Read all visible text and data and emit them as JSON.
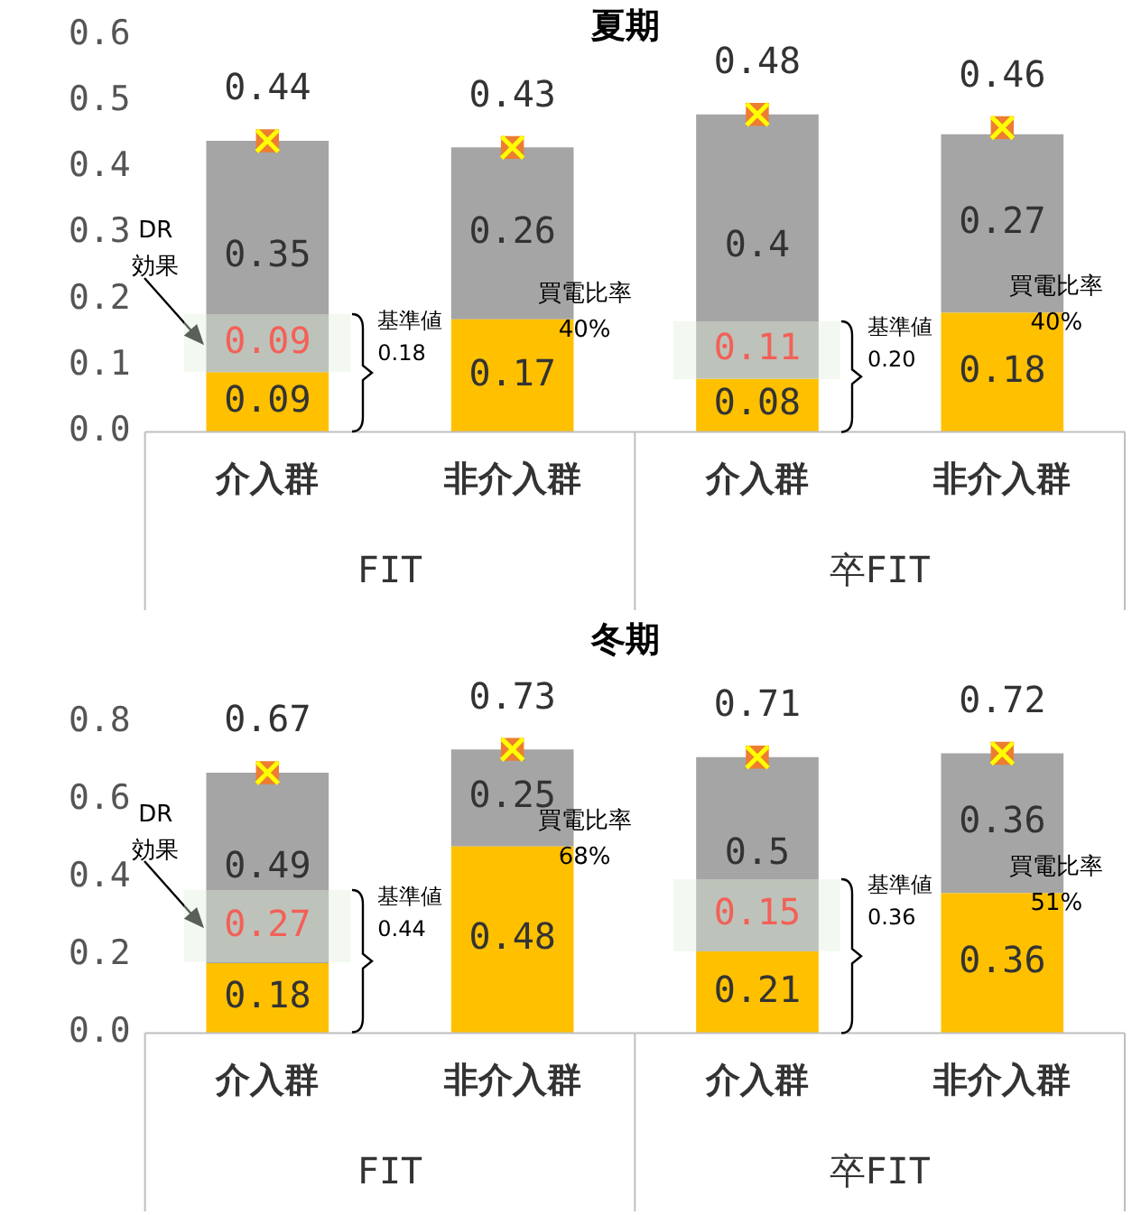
{
  "chart_data": [
    {
      "type": "bar",
      "title": "夏期",
      "stacked": true,
      "categories": [
        "介入群",
        "非介入群",
        "介入群",
        "非介入群"
      ],
      "series": [
        {
          "color": "#ffc000",
          "values": [
            0.09,
            0.17,
            0.08,
            0.18
          ],
          "value_labels": [
            "0.09",
            "0.17",
            "0.08",
            "0.18"
          ]
        },
        {
          "color": "#a5a5a5",
          "values": [
            0.35,
            0.26,
            0.4,
            0.27
          ],
          "value_labels": [
            "0.35",
            "0.26",
            "0.4",
            "0.27"
          ]
        },
        {
          "type": "scatter",
          "color": "#ed7d31",
          "values": [
            0.44,
            0.43,
            0.48,
            0.46
          ],
          "value_labels": [
            "0.44",
            "0.43",
            "0.48",
            "0.46"
          ]
        }
      ],
      "marker": "square",
      "legend": false,
      "grid": false,
      "ylim": [
        0,
        0.6
      ],
      "yticks": [
        {
          "value": 0,
          "label": "0.0"
        },
        0.1,
        0.2,
        0.3,
        0.4,
        0.5,
        0.6
      ],
      "annotations": [
        "DR\n効果",
        "0.09",
        "基準値\n0.18",
        "買電比率\n40%",
        "0.11",
        "基準値\n0.20",
        "買電比率\n40%",
        "FIT",
        "卒FIT"
      ]
    },
    {
      "type": "bar",
      "title": "冬期",
      "stacked": true,
      "categories": [
        "介入群",
        "非介入群",
        "介入群",
        "非介入群"
      ],
      "series": [
        {
          "color": "#ffc000",
          "values": [
            0.18,
            0.48,
            0.21,
            0.36
          ],
          "value_labels": [
            "0.18",
            "0.48",
            "0.21",
            "0.36"
          ]
        },
        {
          "color": "#a5a5a5",
          "values": [
            0.49,
            0.25,
            0.5,
            0.36
          ],
          "value_labels": [
            "0.49",
            "0.25",
            "0.5",
            "0.36"
          ]
        },
        {
          "type": "scatter",
          "color": "#ed7d31",
          "values": [
            0.67,
            0.73,
            0.71,
            0.72
          ],
          "value_labels": [
            "0.67",
            "0.73",
            "0.71",
            "0.72"
          ]
        }
      ],
      "marker": "square",
      "legend": false,
      "grid": false,
      "ylim": [
        0,
        0.8
      ],
      "yticks": [
        {
          "value": 0,
          "label": "0.0"
        },
        0.2,
        0.4,
        0.6,
        0.8
      ],
      "annotations": [
        "DR\n効果",
        "0.27",
        "基準値\n0.44",
        "買電比率\n68%",
        "0.15",
        "基準値\n0.36",
        "買電比率\n51%",
        "FIT",
        "卒FIT"
      ]
    }
  ]
}
